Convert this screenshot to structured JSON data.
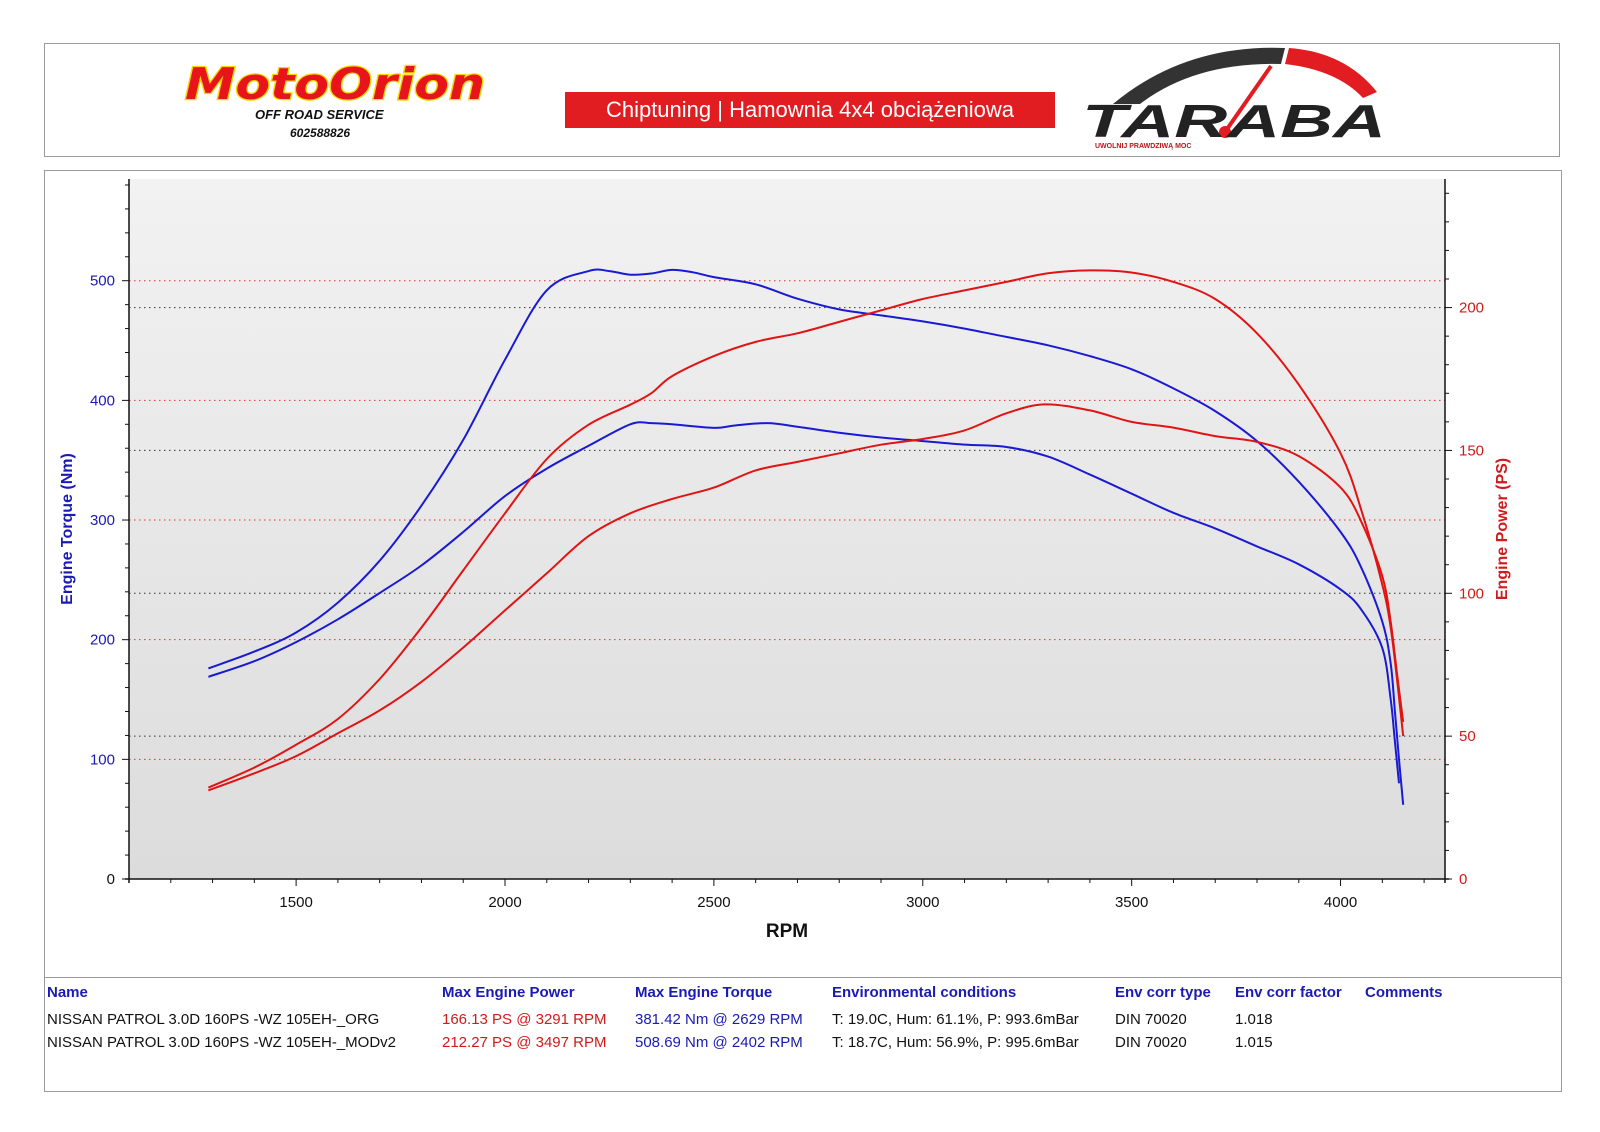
{
  "header": {
    "left_logo": {
      "name": "MotoOrion",
      "tagline": "OFF ROAD SERVICE",
      "phone": "602588826"
    },
    "banner": "Chiptuning | Hamownia 4x4 obciążeniowa",
    "right_logo": {
      "name": "TARABA",
      "tagline": "UWOLNIJ PRAWDZIWĄ MOC"
    }
  },
  "chart_data": {
    "type": "line",
    "xlabel": "RPM",
    "ylabel": "Engine Torque (Nm)",
    "y2label": "Engine Power (PS)",
    "x_ticks": [
      1500,
      2000,
      2500,
      3000,
      3500,
      4000
    ],
    "y_ticks": [
      0,
      100,
      200,
      300,
      400,
      500
    ],
    "y2_ticks": [
      0,
      50,
      100,
      150,
      200
    ],
    "xlim": [
      1100,
      4250
    ],
    "ylim": [
      0,
      585
    ],
    "y2lim": [
      0,
      245
    ],
    "grid": true,
    "colors": {
      "torque": "#1a1ad2",
      "power": "#e01414",
      "torque_axis": "#1a1ab4",
      "power_axis": "#d11a1a"
    },
    "series": [
      {
        "name": "NISSAN PATROL 3.0D 160PS -WZ 105EH-_MODv2",
        "quantity": "torque",
        "axis": "left",
        "points": [
          [
            1290,
            176
          ],
          [
            1400,
            190
          ],
          [
            1500,
            206
          ],
          [
            1600,
            231
          ],
          [
            1700,
            266
          ],
          [
            1800,
            312
          ],
          [
            1900,
            367
          ],
          [
            2000,
            434
          ],
          [
            2100,
            492
          ],
          [
            2200,
            508
          ],
          [
            2250,
            508
          ],
          [
            2300,
            505
          ],
          [
            2350,
            506
          ],
          [
            2400,
            509
          ],
          [
            2450,
            507
          ],
          [
            2500,
            503
          ],
          [
            2600,
            497
          ],
          [
            2700,
            485
          ],
          [
            2800,
            476
          ],
          [
            2900,
            471
          ],
          [
            3000,
            466
          ],
          [
            3100,
            460
          ],
          [
            3200,
            453
          ],
          [
            3300,
            446
          ],
          [
            3400,
            437
          ],
          [
            3500,
            426
          ],
          [
            3600,
            410
          ],
          [
            3700,
            391
          ],
          [
            3800,
            366
          ],
          [
            3900,
            332
          ],
          [
            4000,
            290
          ],
          [
            4050,
            260
          ],
          [
            4100,
            215
          ],
          [
            4120,
            180
          ],
          [
            4130,
            140
          ],
          [
            4140,
            100
          ],
          [
            4150,
            62
          ]
        ]
      },
      {
        "name": "NISSAN PATROL 3.0D 160PS -WZ 105EH-_ORG",
        "quantity": "torque",
        "axis": "left",
        "points": [
          [
            1290,
            169
          ],
          [
            1400,
            182
          ],
          [
            1500,
            198
          ],
          [
            1600,
            217
          ],
          [
            1700,
            239
          ],
          [
            1800,
            262
          ],
          [
            1900,
            290
          ],
          [
            2000,
            320
          ],
          [
            2100,
            343
          ],
          [
            2200,
            362
          ],
          [
            2300,
            380
          ],
          [
            2350,
            381
          ],
          [
            2400,
            380
          ],
          [
            2500,
            377
          ],
          [
            2550,
            379
          ],
          [
            2629,
            381
          ],
          [
            2700,
            378
          ],
          [
            2800,
            373
          ],
          [
            2900,
            369
          ],
          [
            3000,
            366
          ],
          [
            3100,
            363
          ],
          [
            3200,
            361
          ],
          [
            3300,
            353
          ],
          [
            3400,
            338
          ],
          [
            3500,
            322
          ],
          [
            3600,
            306
          ],
          [
            3700,
            293
          ],
          [
            3800,
            278
          ],
          [
            3900,
            263
          ],
          [
            4000,
            242
          ],
          [
            4050,
            225
          ],
          [
            4100,
            193
          ],
          [
            4120,
            150
          ],
          [
            4130,
            115
          ],
          [
            4140,
            80
          ]
        ]
      },
      {
        "name": "NISSAN PATROL 3.0D 160PS -WZ 105EH-_MODv2",
        "quantity": "power",
        "axis": "right",
        "points": [
          [
            1290,
            32
          ],
          [
            1400,
            39
          ],
          [
            1500,
            47
          ],
          [
            1600,
            56
          ],
          [
            1700,
            70
          ],
          [
            1800,
            88
          ],
          [
            1900,
            108
          ],
          [
            2000,
            128
          ],
          [
            2100,
            147
          ],
          [
            2200,
            159
          ],
          [
            2300,
            166
          ],
          [
            2350,
            170
          ],
          [
            2400,
            176
          ],
          [
            2500,
            183
          ],
          [
            2600,
            188
          ],
          [
            2700,
            191
          ],
          [
            2800,
            195
          ],
          [
            2900,
            199
          ],
          [
            3000,
            203
          ],
          [
            3100,
            206
          ],
          [
            3200,
            209
          ],
          [
            3300,
            212
          ],
          [
            3400,
            213
          ],
          [
            3497,
            212.3
          ],
          [
            3600,
            209
          ],
          [
            3700,
            203
          ],
          [
            3800,
            191
          ],
          [
            3900,
            173
          ],
          [
            4000,
            149
          ],
          [
            4050,
            129
          ],
          [
            4100,
            103
          ],
          [
            4120,
            88
          ],
          [
            4135,
            70
          ],
          [
            4150,
            50
          ]
        ]
      },
      {
        "name": "NISSAN PATROL 3.0D 160PS -WZ 105EH-_ORG",
        "quantity": "power",
        "axis": "right",
        "points": [
          [
            1290,
            31
          ],
          [
            1400,
            37
          ],
          [
            1500,
            43
          ],
          [
            1600,
            51
          ],
          [
            1700,
            59
          ],
          [
            1800,
            69
          ],
          [
            1900,
            81
          ],
          [
            2000,
            94
          ],
          [
            2100,
            107
          ],
          [
            2200,
            120
          ],
          [
            2300,
            128
          ],
          [
            2400,
            133
          ],
          [
            2500,
            137
          ],
          [
            2600,
            143
          ],
          [
            2700,
            146
          ],
          [
            2800,
            149
          ],
          [
            2900,
            152
          ],
          [
            3000,
            154
          ],
          [
            3100,
            157
          ],
          [
            3200,
            163
          ],
          [
            3291,
            166.1
          ],
          [
            3400,
            164
          ],
          [
            3500,
            160
          ],
          [
            3600,
            158
          ],
          [
            3700,
            155
          ],
          [
            3800,
            153
          ],
          [
            3900,
            148
          ],
          [
            4000,
            137
          ],
          [
            4050,
            125
          ],
          [
            4100,
            106
          ],
          [
            4120,
            90
          ],
          [
            4135,
            72
          ],
          [
            4150,
            55
          ]
        ]
      }
    ]
  },
  "table": {
    "headers": [
      "Name",
      "Max Engine Power",
      "Max Engine Torque",
      "Environmental conditions",
      "Env corr type",
      "Env corr factor",
      "Comments"
    ],
    "rows": [
      [
        "NISSAN PATROL 3.0D 160PS -WZ 105EH-_ORG",
        "166.13 PS @ 3291 RPM",
        "381.42 Nm @ 2629 RPM",
        "T: 19.0C, Hum: 61.1%, P: 993.6mBar",
        "DIN 70020",
        "1.018",
        ""
      ],
      [
        "NISSAN PATROL 3.0D 160PS -WZ 105EH-_MODv2",
        "212.27 PS @ 3497 RPM",
        "508.69 Nm @ 2402 RPM",
        "T: 18.7C, Hum: 56.9%, P: 995.6mBar",
        "DIN 70020",
        "1.015",
        ""
      ]
    ]
  }
}
